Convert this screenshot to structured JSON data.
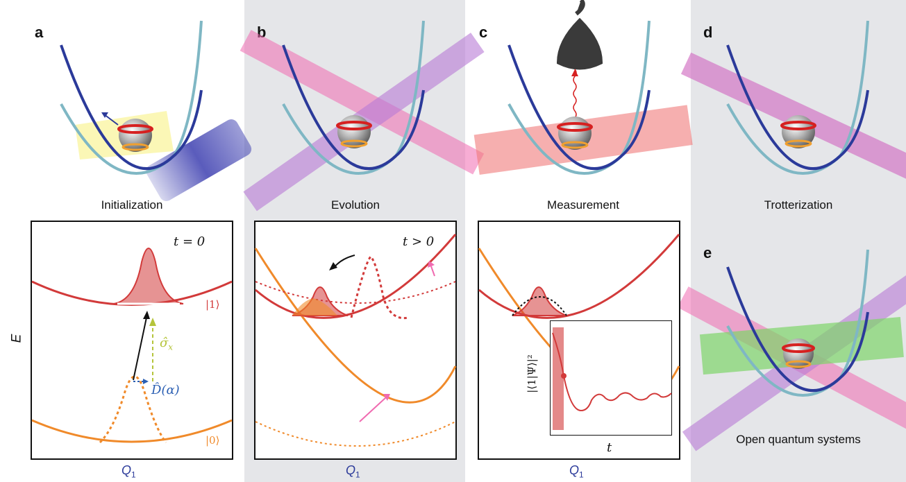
{
  "panels": {
    "a": {
      "letter": "a",
      "caption": "Initialization"
    },
    "b": {
      "letter": "b",
      "caption": "Evolution"
    },
    "c": {
      "letter": "c",
      "caption": "Measurement"
    },
    "d": {
      "letter": "d",
      "caption": "Trotterization"
    },
    "e": {
      "letter": "e",
      "caption": "Open quantum systems"
    }
  },
  "plots": {
    "yaxis": "E",
    "xaxis_symbol": "Q",
    "xaxis_sub": "1",
    "a": {
      "time_label": "t = 0",
      "ket1": "|1⟩",
      "ket0": "|0⟩",
      "sigma": "σ̂",
      "sigma_sub": "x",
      "disp": "D̂(α)"
    },
    "b": {
      "time_label": "t > 0"
    },
    "c": {
      "inset_y": "|⟨1|Ψ⟩|²",
      "inset_x": "t"
    }
  },
  "colors": {
    "red": "#d23a3a",
    "orange": "#f08a2a",
    "blue": "#2b3a9a",
    "teal": "#7fb7c4",
    "pink": "#f06ab0",
    "purple": "#b77ad6",
    "green": "#7fd46a",
    "panel_gray": "#e5e6e9"
  }
}
